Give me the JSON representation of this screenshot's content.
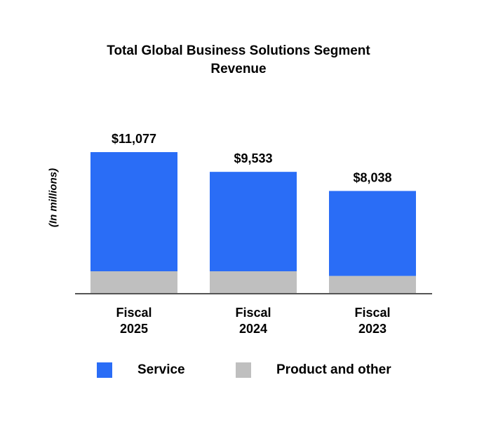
{
  "chart_data": {
    "type": "bar",
    "stacked": true,
    "title_lines": [
      "Total Global Business Solutions Segment",
      "Revenue"
    ],
    "title": "Total Global Business Solutions Segment Revenue",
    "xlabel": "",
    "ylabel": "(In millions)",
    "categories": [
      [
        "Fiscal",
        "2025"
      ],
      [
        "Fiscal",
        "2024"
      ],
      [
        "Fiscal",
        "2023"
      ]
    ],
    "totals": [
      11077,
      9533,
      8038
    ],
    "total_labels": [
      "$11,077",
      "$9,533",
      "$8,038"
    ],
    "series": [
      {
        "name": "Service",
        "color": "#2a6df6",
        "values": [
          9322,
          7778,
          6646
        ]
      },
      {
        "name": "Product and other",
        "color": "#bfbfbf",
        "values": [
          1755,
          1755,
          1392
        ]
      }
    ],
    "ylim": [
      0,
      11077
    ],
    "grid": false,
    "legend_position": "bottom"
  },
  "legend": {
    "service_label": "Service",
    "product_label": "Product and other"
  },
  "colors": {
    "axis": "#555555"
  }
}
